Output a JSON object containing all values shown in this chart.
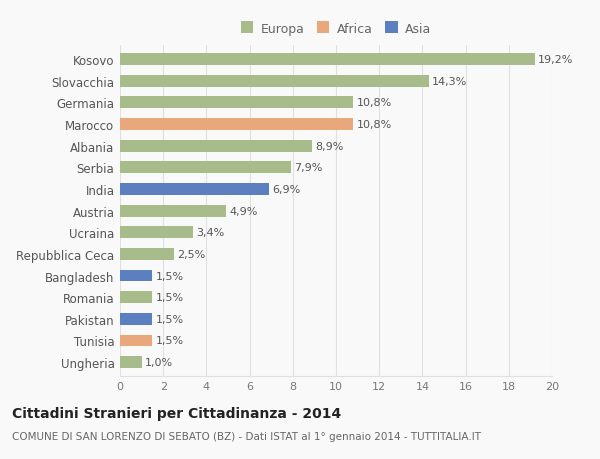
{
  "categories": [
    "Kosovo",
    "Slovacchia",
    "Germania",
    "Marocco",
    "Albania",
    "Serbia",
    "India",
    "Austria",
    "Ucraina",
    "Repubblica Ceca",
    "Bangladesh",
    "Romania",
    "Pakistan",
    "Tunisia",
    "Ungheria"
  ],
  "values": [
    19.2,
    14.3,
    10.8,
    10.8,
    8.9,
    7.9,
    6.9,
    4.9,
    3.4,
    2.5,
    1.5,
    1.5,
    1.5,
    1.5,
    1.0
  ],
  "labels": [
    "19,2%",
    "14,3%",
    "10,8%",
    "10,8%",
    "8,9%",
    "7,9%",
    "6,9%",
    "4,9%",
    "3,4%",
    "2,5%",
    "1,5%",
    "1,5%",
    "1,5%",
    "1,5%",
    "1,0%"
  ],
  "colors": [
    "#a8bb8a",
    "#a8bb8a",
    "#a8bb8a",
    "#e8a87c",
    "#a8bb8a",
    "#a8bb8a",
    "#5b7fbf",
    "#a8bb8a",
    "#a8bb8a",
    "#a8bb8a",
    "#5b7fbf",
    "#a8bb8a",
    "#5b7fbf",
    "#e8a87c",
    "#a8bb8a"
  ],
  "legend_colors": {
    "Europa": "#a8bb8a",
    "Africa": "#e8a87c",
    "Asia": "#5b7fbf"
  },
  "xlim": [
    0,
    20
  ],
  "xticks": [
    0,
    2,
    4,
    6,
    8,
    10,
    12,
    14,
    16,
    18,
    20
  ],
  "title": "Cittadini Stranieri per Cittadinanza - 2014",
  "subtitle": "COMUNE DI SAN LORENZO DI SEBATO (BZ) - Dati ISTAT al 1° gennaio 2014 - TUTTITALIA.IT",
  "background_color": "#f9f9f9",
  "grid_color": "#e0e0e0",
  "bar_height": 0.55,
  "tick_fontsize": 8,
  "ylabel_fontsize": 8.5,
  "label_fontsize": 8,
  "title_fontsize": 10,
  "subtitle_fontsize": 7.5
}
